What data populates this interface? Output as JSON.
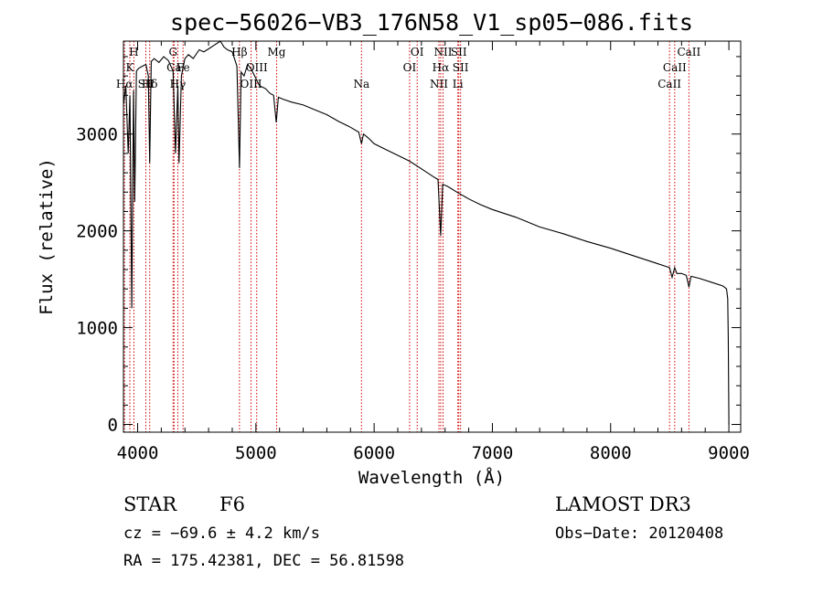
{
  "chart_data": {
    "type": "line",
    "title": "spec−56026−VB3_176N58_V1_sp05−086.fits",
    "xlabel": "Wavelength (Å)",
    "ylabel": "Flux (relative)",
    "xlim": [
      3880,
      9100
    ],
    "ylim": [
      -80,
      3960
    ],
    "x_ticks": [
      "4000",
      "5000",
      "6000",
      "7000",
      "8000",
      "9000"
    ],
    "y_ticks": [
      "0",
      "1000",
      "2000",
      "3000"
    ],
    "x_tick_values": [
      4000,
      5000,
      6000,
      7000,
      8000,
      9000
    ],
    "y_tick_values": [
      0,
      1000,
      2000,
      3000
    ],
    "series": [
      {
        "name": "spectrum",
        "x": [
          3880,
          3900,
          3920,
          3935,
          3950,
          3965,
          3975,
          3990,
          4010,
          4040,
          4070,
          4090,
          4102,
          4115,
          4140,
          4180,
          4220,
          4260,
          4300,
          4320,
          4340,
          4350,
          4370,
          4400,
          4430,
          4470,
          4520,
          4560,
          4600,
          4650,
          4700,
          4730,
          4760,
          4800,
          4840,
          4861,
          4875,
          4900,
          4930,
          4960,
          4990,
          5030,
          5080,
          5120,
          5150,
          5172,
          5190,
          5230,
          5300,
          5400,
          5500,
          5600,
          5700,
          5800,
          5870,
          5893,
          5910,
          5950,
          6000,
          6100,
          6200,
          6300,
          6400,
          6500,
          6540,
          6563,
          6580,
          6620,
          6700,
          6800,
          6900,
          7000,
          7200,
          7400,
          7600,
          7800,
          8000,
          8200,
          8400,
          8498,
          8520,
          8542,
          8560,
          8600,
          8640,
          8662,
          8680,
          8750,
          8850,
          8950,
          8980,
          8990,
          8995,
          9000
        ],
        "values": [
          3300,
          3500,
          2800,
          3400,
          1200,
          3450,
          2300,
          3650,
          3680,
          3700,
          3720,
          3600,
          2700,
          3750,
          3780,
          3740,
          3800,
          3760,
          3650,
          2800,
          3500,
          2700,
          3600,
          3780,
          3820,
          3780,
          3870,
          3850,
          3880,
          3920,
          3960,
          3900,
          3870,
          3850,
          3700,
          2650,
          3640,
          3600,
          3720,
          3670,
          3600,
          3500,
          3470,
          3420,
          3400,
          3120,
          3380,
          3360,
          3330,
          3300,
          3250,
          3200,
          3130,
          3070,
          3020,
          2900,
          3000,
          2960,
          2900,
          2840,
          2780,
          2720,
          2640,
          2560,
          2530,
          1950,
          2480,
          2460,
          2400,
          2330,
          2270,
          2220,
          2140,
          2040,
          1970,
          1890,
          1820,
          1740,
          1660,
          1620,
          1520,
          1620,
          1560,
          1560,
          1540,
          1420,
          1530,
          1510,
          1470,
          1430,
          1400,
          1300,
          900,
          0
        ]
      }
    ],
    "line_markers": [
      {
        "label": "Hα",
        "x": 3889,
        "row": 3
      },
      {
        "label": "K",
        "x": 3934,
        "row": 2
      },
      {
        "label": "H",
        "x": 3968,
        "row": 1
      },
      {
        "label": "SII",
        "x": 4069,
        "row": 3
      },
      {
        "label": "Hδ",
        "x": 4102,
        "row": 3
      },
      {
        "label": "G",
        "x": 4300,
        "row": 1
      },
      {
        "label": "Ca",
        "x": 4308,
        "row": 2
      },
      {
        "label": "Hγ",
        "x": 4340,
        "row": 3
      },
      {
        "label": "Fe",
        "x": 4384,
        "row": 2
      },
      {
        "label": "Hβ",
        "x": 4861,
        "row": 1
      },
      {
        "label": "OIII",
        "x": 4959,
        "row": 3
      },
      {
        "label": "OIII",
        "x": 5007,
        "row": 2
      },
      {
        "label": "Mg",
        "x": 5175,
        "row": 1
      },
      {
        "label": "Na",
        "x": 5893,
        "row": 3
      },
      {
        "label": "OI",
        "x": 6300,
        "row": 2
      },
      {
        "label": "OI",
        "x": 6364,
        "row": 1
      },
      {
        "label": "NII",
        "x": 6548,
        "row": 3
      },
      {
        "label": "NII",
        "x": 6583,
        "row": 1
      },
      {
        "label": "Hα",
        "x": 6563,
        "row": 2
      },
      {
        "label": "Li",
        "x": 6708,
        "row": 3
      },
      {
        "label": "SII",
        "x": 6716,
        "row": 1
      },
      {
        "label": "SII",
        "x": 6731,
        "row": 2
      },
      {
        "label": "CaII",
        "x": 8498,
        "row": 3
      },
      {
        "label": "CaII",
        "x": 8542,
        "row": 2
      },
      {
        "label": "CaII",
        "x": 8662,
        "row": 1
      }
    ]
  },
  "info": {
    "object_class": "STAR",
    "subclass": "F6",
    "survey": "LAMOST DR3",
    "redshift": "cz = −69.6 ± 4.2 km/s",
    "obs_date": "Obs−Date: 20120408",
    "coords": "RA = 175.42381, DEC =  56.81598"
  },
  "colors": {
    "spectrum": "#000000",
    "markers": "#cc0000",
    "axes": "#000000"
  }
}
